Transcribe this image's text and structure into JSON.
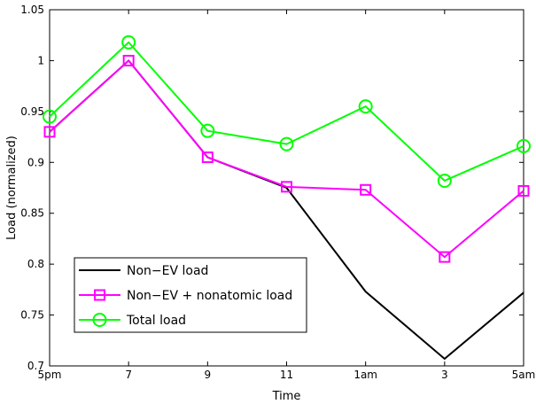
{
  "chart_data": {
    "type": "line",
    "title": "",
    "xlabel": "Time",
    "ylabel": "Load (normalized)",
    "categories": [
      "5pm",
      "7",
      "9",
      "11",
      "1am",
      "3",
      "5am"
    ],
    "yticks": [
      "0.7",
      "0.75",
      "0.8",
      "0.85",
      "0.9",
      "0.95",
      "1",
      "1.05"
    ],
    "ylim": [
      0.7,
      1.05
    ],
    "grid": false,
    "legend_position": "bottom-left",
    "series": [
      {
        "name": "Non−EV load",
        "color": "#000000",
        "marker": "none",
        "values": [
          0.93,
          1.0,
          0.905,
          0.875,
          0.773,
          0.707,
          0.772
        ]
      },
      {
        "name": "Non−EV + nonatomic load",
        "color": "#ff00ff",
        "marker": "square",
        "values": [
          0.93,
          1.0,
          0.905,
          0.876,
          0.873,
          0.807,
          0.872
        ]
      },
      {
        "name": "Total load",
        "color": "#00ff00",
        "marker": "circle",
        "values": [
          0.945,
          1.018,
          0.931,
          0.918,
          0.955,
          0.882,
          0.916
        ]
      }
    ]
  }
}
